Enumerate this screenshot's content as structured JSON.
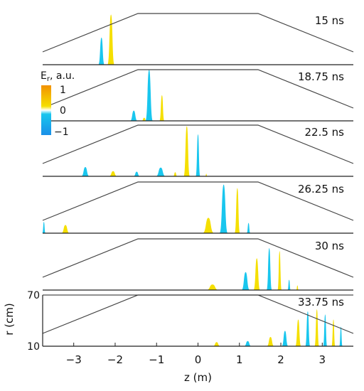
{
  "figure": {
    "panel_times": [
      "15 ns",
      "18.75 ns",
      "22.5 ns",
      "26.25 ns",
      "30 ns",
      "33.75 ns"
    ],
    "colorbar": {
      "title": "E",
      "title_sub": "r",
      "title_suffix": ", a.u.",
      "tick_max": "1",
      "tick_mid": "0",
      "tick_min": "−1",
      "positive_color": "#f5df00",
      "negative_color": "#19c6ee",
      "positive_peak_color": "#f29100",
      "negative_peak_color": "#1a8fe8"
    },
    "x_axis": {
      "label": "z (m)",
      "ticks": [
        -3,
        -2,
        -1,
        0,
        1,
        2,
        3
      ],
      "tick_labels": [
        "−3",
        "−2",
        "−1",
        "0",
        "1",
        "2",
        "3"
      ],
      "range": [
        -3.75,
        3.75
      ]
    },
    "y_axis": {
      "label": "r (cm)",
      "ticks": [
        10,
        70
      ],
      "tick_labels": [
        "10",
        "70"
      ]
    },
    "boundary": {
      "z_points": [
        -3.75,
        -1.45,
        1.45,
        3.75
      ],
      "r_points": [
        25,
        70,
        70,
        25
      ]
    },
    "colors": {
      "positive": "#f5df00",
      "negative": "#19c6ee",
      "boundary_line": "#444444",
      "axis": "#222222"
    },
    "pulses": [
      [
        {
          "z": -2.33,
          "w": 0.075,
          "h": 0.53,
          "s": -1
        },
        {
          "z": -2.1,
          "w": 0.085,
          "h": 0.98,
          "s": 1
        }
      ],
      [
        {
          "z": -1.55,
          "w": 0.09,
          "h": 0.2,
          "s": -1
        },
        {
          "z": -1.3,
          "w": 0.06,
          "h": 0.06,
          "s": 1
        },
        {
          "z": -1.18,
          "w": 0.09,
          "h": 1.0,
          "s": -1
        },
        {
          "z": -0.87,
          "w": 0.06,
          "h": 0.5,
          "s": 1
        }
      ],
      [
        {
          "z": -2.72,
          "w": 0.1,
          "h": 0.18,
          "s": -1
        },
        {
          "z": -2.05,
          "w": 0.1,
          "h": 0.1,
          "s": 1
        },
        {
          "z": -1.48,
          "w": 0.08,
          "h": 0.09,
          "s": -1
        },
        {
          "z": -0.9,
          "w": 0.12,
          "h": 0.17,
          "s": -1
        },
        {
          "z": -0.55,
          "w": 0.05,
          "h": 0.08,
          "s": 1
        },
        {
          "z": -0.27,
          "w": 0.075,
          "h": 0.98,
          "s": 1
        },
        {
          "z": 0.0,
          "w": 0.055,
          "h": 0.82,
          "s": -1
        },
        {
          "z": 0.2,
          "w": 0.025,
          "h": 0.05,
          "s": 1
        }
      ],
      [
        {
          "z": -3.72,
          "w": 0.04,
          "h": 0.22,
          "s": -1
        },
        {
          "z": -3.2,
          "w": 0.1,
          "h": 0.16,
          "s": 1
        },
        {
          "z": 0.25,
          "w": 0.14,
          "h": 0.3,
          "s": 1
        },
        {
          "z": 0.62,
          "w": 0.1,
          "h": 0.95,
          "s": -1
        },
        {
          "z": 0.95,
          "w": 0.065,
          "h": 0.88,
          "s": 1
        },
        {
          "z": 1.22,
          "w": 0.045,
          "h": 0.2,
          "s": -1
        }
      ],
      [
        {
          "z": 0.35,
          "w": 0.15,
          "h": 0.11,
          "s": 1
        },
        {
          "z": 1.15,
          "w": 0.1,
          "h": 0.35,
          "s": -1
        },
        {
          "z": 1.42,
          "w": 0.08,
          "h": 0.62,
          "s": 1
        },
        {
          "z": 1.72,
          "w": 0.065,
          "h": 0.82,
          "s": -1
        },
        {
          "z": 1.97,
          "w": 0.05,
          "h": 0.76,
          "s": 1
        },
        {
          "z": 2.2,
          "w": 0.04,
          "h": 0.2,
          "s": -1
        },
        {
          "z": 2.4,
          "w": 0.03,
          "h": 0.09,
          "s": 1
        }
      ],
      [
        {
          "z": 0.45,
          "w": 0.09,
          "h": 0.08,
          "s": 1
        },
        {
          "z": 1.2,
          "w": 0.09,
          "h": 0.1,
          "s": -1
        },
        {
          "z": 1.75,
          "w": 0.09,
          "h": 0.18,
          "s": 1
        },
        {
          "z": 2.1,
          "w": 0.08,
          "h": 0.3,
          "s": -1
        },
        {
          "z": 2.42,
          "w": 0.07,
          "h": 0.52,
          "s": 1
        },
        {
          "z": 2.65,
          "w": 0.06,
          "h": 0.68,
          "s": -1
        },
        {
          "z": 2.87,
          "w": 0.055,
          "h": 0.72,
          "s": 1
        },
        {
          "z": 3.07,
          "w": 0.05,
          "h": 0.62,
          "s": -1
        },
        {
          "z": 3.27,
          "w": 0.045,
          "h": 0.52,
          "s": 1
        },
        {
          "z": 3.45,
          "w": 0.04,
          "h": 0.38,
          "s": -1
        }
      ]
    ]
  }
}
